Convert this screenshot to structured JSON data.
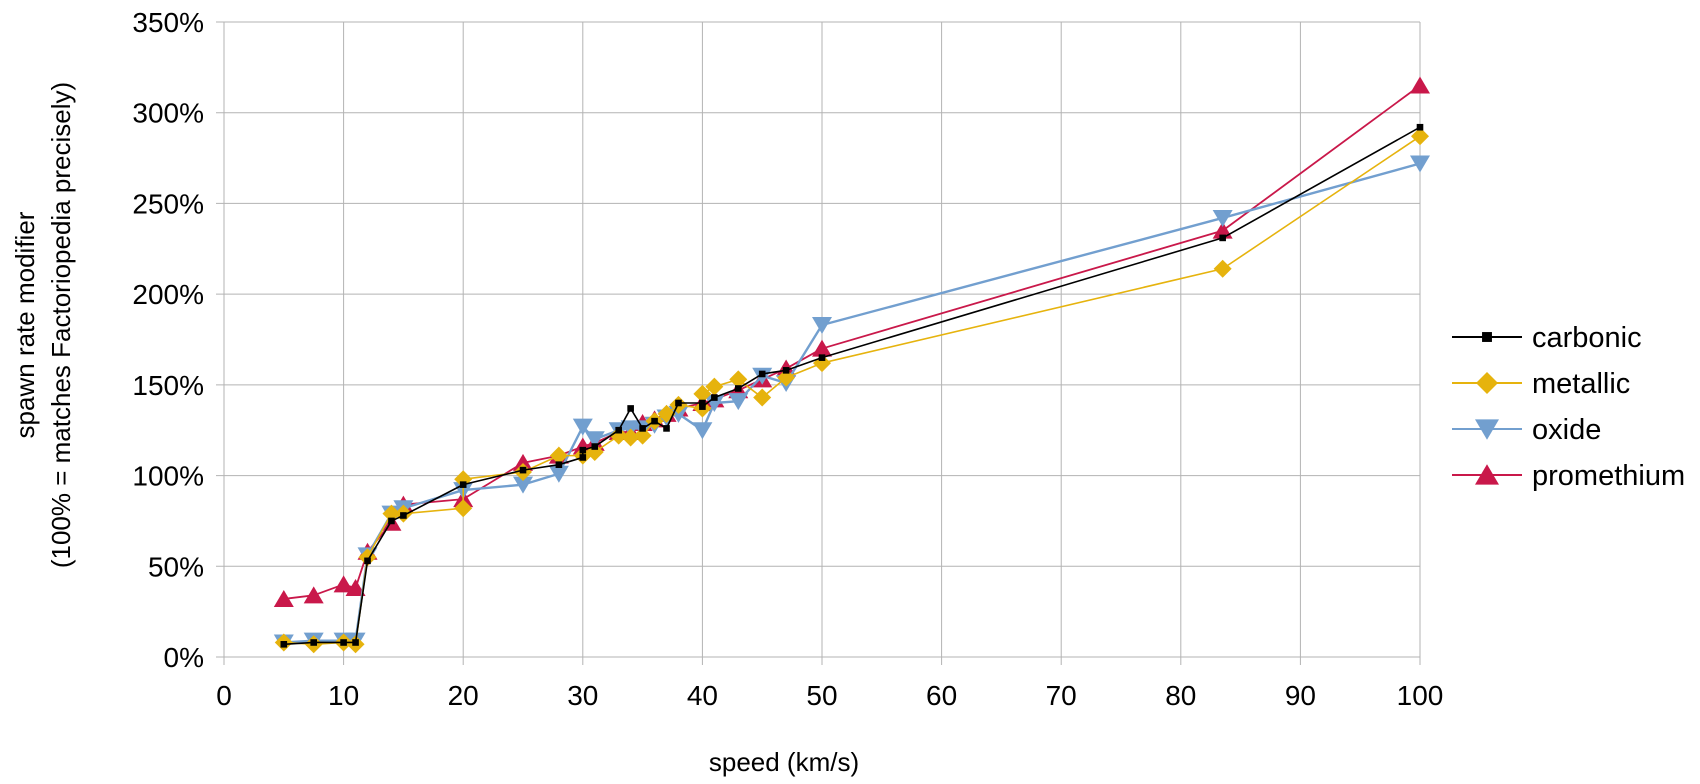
{
  "chart_data": {
    "type": "line",
    "xlabel": "speed (km/s)",
    "ylabel_line1": "spawn rate modifier",
    "ylabel_line2": "(100% = matches Factoriopedia precisely)",
    "xlim": [
      0,
      100
    ],
    "ylim": [
      0,
      350
    ],
    "x_ticks": [
      0,
      10,
      20,
      30,
      40,
      50,
      60,
      70,
      80,
      90,
      100
    ],
    "y_ticks": [
      0,
      50,
      100,
      150,
      200,
      250,
      300,
      350
    ],
    "y_tick_labels": [
      "0%",
      "50%",
      "100%",
      "150%",
      "200%",
      "250%",
      "300%",
      "350%"
    ],
    "grid": true,
    "legend_position": "right",
    "series": [
      {
        "name": "carbonic",
        "color": "#000000",
        "marker": "square",
        "points": [
          [
            5,
            7
          ],
          [
            7.5,
            8
          ],
          [
            10,
            8
          ],
          [
            11,
            8
          ],
          [
            12,
            53
          ],
          [
            14,
            75
          ],
          [
            15,
            78
          ],
          [
            20,
            95
          ],
          [
            25,
            103
          ],
          [
            28,
            106
          ],
          [
            30,
            110
          ],
          [
            30,
            114
          ],
          [
            31,
            116
          ],
          [
            33,
            125
          ],
          [
            34,
            137
          ],
          [
            35,
            126
          ],
          [
            36,
            130
          ],
          [
            37,
            126
          ],
          [
            38,
            140
          ],
          [
            40,
            140
          ],
          [
            40,
            138
          ],
          [
            41,
            143
          ],
          [
            43,
            148
          ],
          [
            45,
            156
          ],
          [
            47,
            158
          ],
          [
            50,
            165
          ],
          [
            83.5,
            231
          ],
          [
            100,
            292
          ]
        ]
      },
      {
        "name": "metallic",
        "color": "#e6b30d",
        "marker": "diamond",
        "points": [
          [
            5,
            8
          ],
          [
            7.5,
            7
          ],
          [
            10,
            8
          ],
          [
            11,
            7
          ],
          [
            12,
            55
          ],
          [
            14,
            79
          ],
          [
            15,
            79
          ],
          [
            20,
            82
          ],
          [
            20,
            98
          ],
          [
            25,
            102
          ],
          [
            28,
            111
          ],
          [
            30,
            111
          ],
          [
            31,
            113
          ],
          [
            33,
            122
          ],
          [
            34,
            121
          ],
          [
            35,
            122
          ],
          [
            36,
            130
          ],
          [
            37,
            134
          ],
          [
            38,
            139
          ],
          [
            40,
            137
          ],
          [
            40,
            145
          ],
          [
            41,
            149
          ],
          [
            43,
            153
          ],
          [
            45,
            143
          ],
          [
            47,
            154
          ],
          [
            50,
            162
          ],
          [
            83.5,
            214
          ],
          [
            100,
            287
          ]
        ]
      },
      {
        "name": "oxide",
        "color": "#729fcf",
        "marker": "triangle-down",
        "points": [
          [
            5,
            8
          ],
          [
            7.5,
            9
          ],
          [
            10,
            9
          ],
          [
            11,
            9
          ],
          [
            12,
            56
          ],
          [
            14,
            79
          ],
          [
            15,
            82
          ],
          [
            20,
            92
          ],
          [
            25,
            95
          ],
          [
            28,
            101
          ],
          [
            30,
            127
          ],
          [
            31,
            120
          ],
          [
            33,
            125
          ],
          [
            34,
            126
          ],
          [
            35,
            126
          ],
          [
            36,
            128
          ],
          [
            37,
            132
          ],
          [
            38,
            134
          ],
          [
            40,
            125
          ],
          [
            41,
            140
          ],
          [
            43,
            141
          ],
          [
            45,
            155
          ],
          [
            47,
            151
          ],
          [
            50,
            183
          ],
          [
            83.5,
            242
          ],
          [
            100,
            272
          ]
        ]
      },
      {
        "name": "promethium",
        "color": "#c9184a",
        "marker": "triangle-up",
        "points": [
          [
            5,
            32
          ],
          [
            7.5,
            34
          ],
          [
            10,
            40
          ],
          [
            11,
            38
          ],
          [
            12,
            58
          ],
          [
            14,
            74
          ],
          [
            15,
            84
          ],
          [
            20,
            87
          ],
          [
            25,
            107
          ],
          [
            28,
            111
          ],
          [
            30,
            116
          ],
          [
            31,
            118
          ],
          [
            33,
            124
          ],
          [
            34,
            124
          ],
          [
            35,
            129
          ],
          [
            36,
            131
          ],
          [
            37,
            134
          ],
          [
            38,
            137
          ],
          [
            40,
            140
          ],
          [
            41,
            142
          ],
          [
            43,
            147
          ],
          [
            45,
            153
          ],
          [
            47,
            159
          ],
          [
            50,
            170
          ],
          [
            83.5,
            235
          ],
          [
            100,
            315
          ]
        ]
      }
    ]
  }
}
